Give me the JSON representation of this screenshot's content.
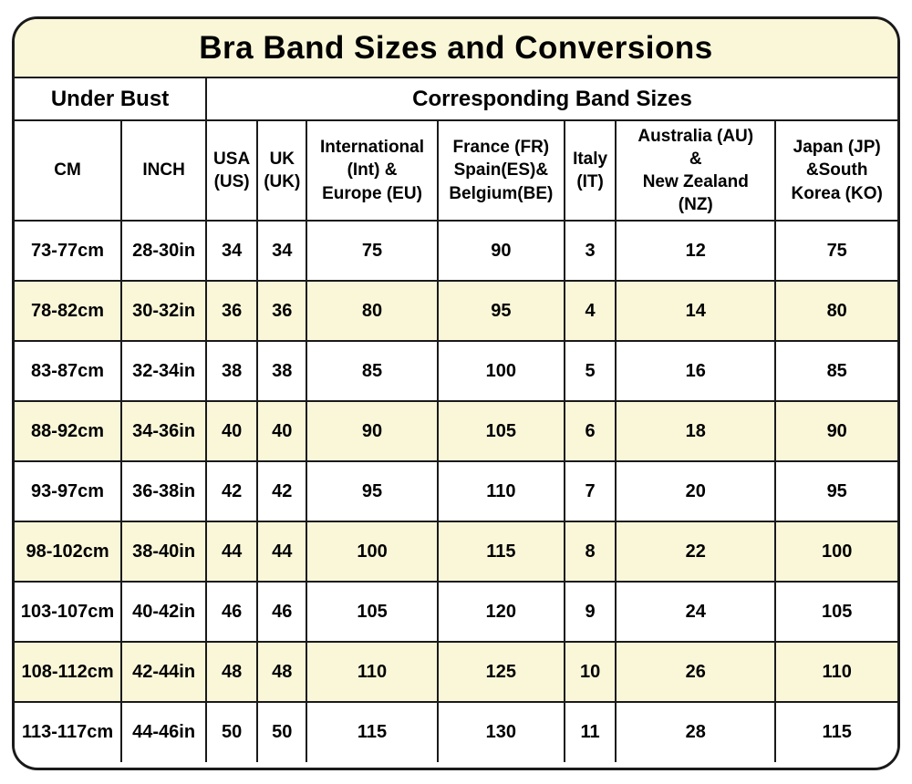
{
  "title": "Bra Band Sizes and Conversions",
  "colors": {
    "cream": "#FAF7D9",
    "border": "#1A1A1A",
    "text": "#000000",
    "row_white": "#FFFFFF"
  },
  "table": {
    "group_headers": {
      "under_bust": "Under Bust",
      "band_sizes": "Corresponding Band Sizes"
    },
    "columns": [
      {
        "key": "cm",
        "label": "CM"
      },
      {
        "key": "inch",
        "label": "INCH"
      },
      {
        "key": "usa",
        "label": "USA\n(US)"
      },
      {
        "key": "uk",
        "label": "UK\n(UK)"
      },
      {
        "key": "international-europe",
        "label": "International\n(Int) &\nEurope (EU)"
      },
      {
        "key": "france-spain-belgium",
        "label": "France (FR)\nSpain(ES)&\nBelgium(BE)"
      },
      {
        "key": "italy",
        "label": "Italy\n(IT)"
      },
      {
        "key": "australia-new-zealand",
        "label": "Australia (AU)\n&\nNew Zealand\n(NZ)"
      },
      {
        "key": "japan-south-korea",
        "label": "Japan (JP)\n&South\nKorea (KO)"
      }
    ],
    "rows": [
      [
        "73-77cm",
        "28-30in",
        "34",
        "34",
        "75",
        "90",
        "3",
        "12",
        "75"
      ],
      [
        "78-82cm",
        "30-32in",
        "36",
        "36",
        "80",
        "95",
        "4",
        "14",
        "80"
      ],
      [
        "83-87cm",
        "32-34in",
        "38",
        "38",
        "85",
        "100",
        "5",
        "16",
        "85"
      ],
      [
        "88-92cm",
        "34-36in",
        "40",
        "40",
        "90",
        "105",
        "6",
        "18",
        "90"
      ],
      [
        "93-97cm",
        "36-38in",
        "42",
        "42",
        "95",
        "110",
        "7",
        "20",
        "95"
      ],
      [
        "98-102cm",
        "38-40in",
        "44",
        "44",
        "100",
        "115",
        "8",
        "22",
        "100"
      ],
      [
        "103-107cm",
        "40-42in",
        "46",
        "46",
        "105",
        "120",
        "9",
        "24",
        "105"
      ],
      [
        "108-112cm",
        "42-44in",
        "48",
        "48",
        "110",
        "125",
        "10",
        "26",
        "110"
      ],
      [
        "113-117cm",
        "44-46in",
        "50",
        "50",
        "115",
        "130",
        "11",
        "28",
        "115"
      ]
    ]
  }
}
